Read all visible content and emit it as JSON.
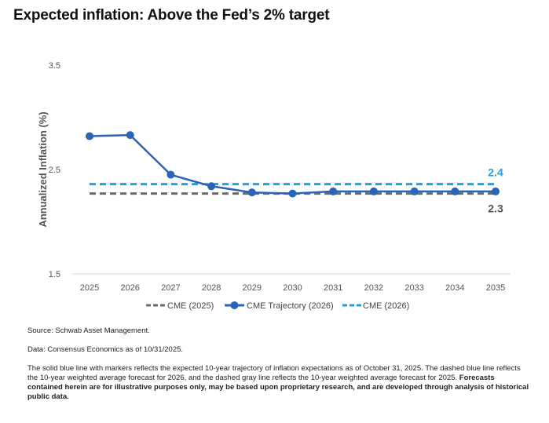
{
  "title": "Expected inflation: Above the Fed’s 2% target",
  "chart_data": {
    "type": "line",
    "title": "",
    "xlabel": "",
    "ylabel": "Annualized Inflation (%)",
    "ylim": [
      1.5,
      3.5
    ],
    "yticks": [
      "3.5",
      "2.5",
      "1.5"
    ],
    "x": [
      "2025",
      "2026",
      "2027",
      "2028",
      "2029",
      "2030",
      "2031",
      "2032",
      "2033",
      "2034",
      "2035"
    ],
    "grid": false,
    "legend_position": "bottom",
    "series": [
      {
        "name": "CME (2025)",
        "style": "dashed",
        "color": "#6b6b6b",
        "markers": false,
        "values": [
          2.27,
          2.27,
          2.27,
          2.27,
          2.27,
          2.27,
          2.27,
          2.27,
          2.27,
          2.27,
          2.27
        ],
        "end_label": "2.3"
      },
      {
        "name": "CME Trajectory (2026)",
        "style": "solid",
        "color": "#2b63b6",
        "markers": true,
        "values": [
          2.82,
          2.83,
          2.45,
          2.34,
          2.28,
          2.27,
          2.29,
          2.29,
          2.29,
          2.29,
          2.29
        ],
        "end_label": ""
      },
      {
        "name": "CME (2026)",
        "style": "dashed",
        "color": "#1aa3e2",
        "markers": false,
        "values": [
          2.36,
          2.36,
          2.36,
          2.36,
          2.36,
          2.36,
          2.36,
          2.36,
          2.36,
          2.36,
          2.36
        ],
        "end_label": "2.4"
      }
    ]
  },
  "notes": {
    "source": "Source: Schwab Asset Management.",
    "data": "Data: Consensus Economics as of 10/31/2025.",
    "description": "The solid blue line with markers reflects the expected 10-year trajectory of inflation expectations as of October 31, 2025. The dashed blue line reflects the 10-year weighted average forecast for 2026, and the dashed gray line reflects the 10-year weighted average forecast for 2025.",
    "disclaimer": "Forecasts contained herein are for illustrative purposes only, may be based upon proprietary research, and are developed through analysis of historical public data."
  }
}
